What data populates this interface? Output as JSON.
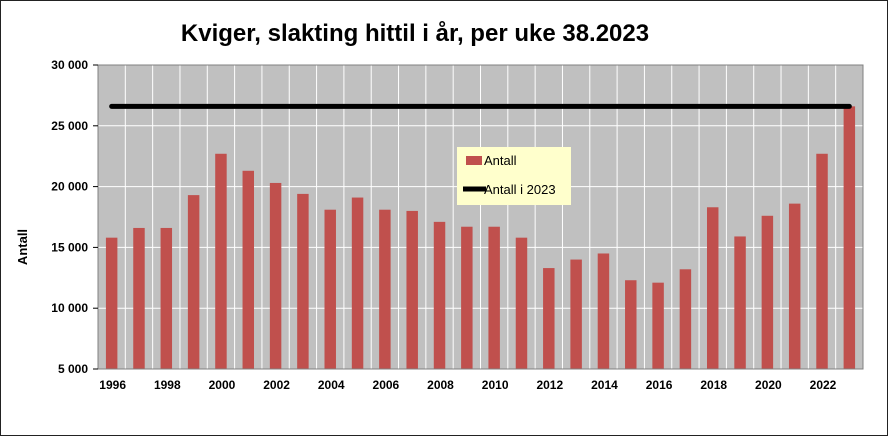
{
  "chart_data": {
    "type": "bar",
    "title": "Kviger, slakting hittil i år, per uke 38.2023",
    "ylabel": "Antall",
    "xlabel": "",
    "ylim": [
      5000,
      30000
    ],
    "yticks": [
      5000,
      10000,
      15000,
      20000,
      25000,
      30000
    ],
    "ytick_labels": [
      "5 000",
      "10 000",
      "15 000",
      "20 000",
      "25 000",
      "30 000"
    ],
    "xtick_labels": [
      "1996",
      "1998",
      "2000",
      "2002",
      "2004",
      "2006",
      "2008",
      "2010",
      "2012",
      "2014",
      "2016",
      "2018",
      "2020",
      "2022"
    ],
    "categories": [
      "1996",
      "1997",
      "1998",
      "1999",
      "2000",
      "2001",
      "2002",
      "2003",
      "2004",
      "2005",
      "2006",
      "2007",
      "2008",
      "2009",
      "2010",
      "2011",
      "2012",
      "2013",
      "2014",
      "2015",
      "2016",
      "2017",
      "2018",
      "2019",
      "2020",
      "2021",
      "2022",
      "2023"
    ],
    "series": [
      {
        "name": "Antall",
        "kind": "bar",
        "color": "#c0504d",
        "values": [
          15800,
          16600,
          16600,
          19300,
          22700,
          21300,
          20300,
          19400,
          18100,
          19100,
          18100,
          18000,
          17100,
          16700,
          16700,
          15800,
          13300,
          14000,
          14500,
          12300,
          12100,
          13200,
          18300,
          15900,
          17600,
          18600,
          22700,
          26600
        ]
      },
      {
        "name": "Antall i 2023",
        "kind": "line",
        "color": "#000000",
        "values": [
          26600,
          26600,
          26600,
          26600,
          26600,
          26600,
          26600,
          26600,
          26600,
          26600,
          26600,
          26600,
          26600,
          26600,
          26600,
          26600,
          26600,
          26600,
          26600,
          26600,
          26600,
          26600,
          26600,
          26600,
          26600,
          26600,
          26600,
          26600
        ]
      }
    ],
    "grid": true,
    "legend": "center"
  },
  "colors": {
    "plot_bg": "#c0c0c0",
    "grid": "#ffffff",
    "legend_bg": "#ffffcc"
  }
}
